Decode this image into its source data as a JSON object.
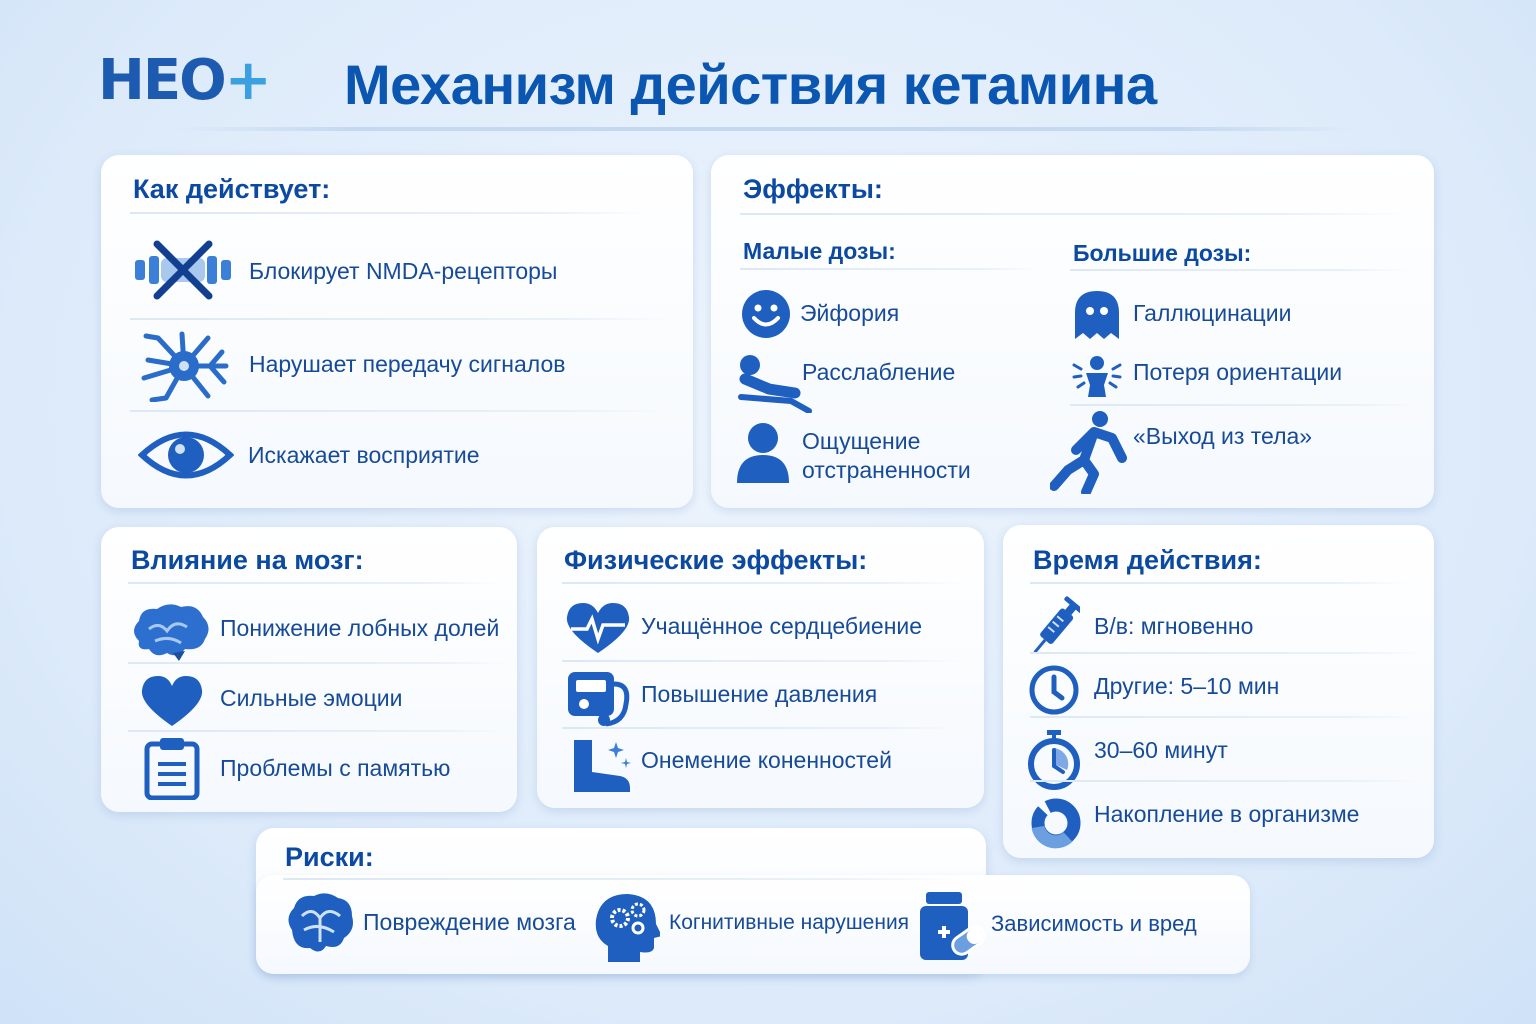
{
  "logo": "НЕО+",
  "title": "Механизм действия кетамина",
  "how": {
    "heading": "Как действует:",
    "items": [
      {
        "icon": "blocked-receptor-icon",
        "label": "Блокирует NMDA-рецепторы"
      },
      {
        "icon": "neuron-icon",
        "label": "Нарушает передачу сигналов"
      },
      {
        "icon": "eye-icon",
        "label": "Искажает восприятие"
      }
    ]
  },
  "effects": {
    "heading": "Эффекты:",
    "low": {
      "heading": "Малые дозы:",
      "items": [
        {
          "icon": "smiley-icon",
          "label": "Эйфория"
        },
        {
          "icon": "reclining-person-icon",
          "label": "Расслабление"
        },
        {
          "icon": "person-icon",
          "label": "Ощущение отстраненности"
        }
      ]
    },
    "high": {
      "heading": "Большие дозы:",
      "items": [
        {
          "icon": "ghost-icon",
          "label": "Галлюцинации"
        },
        {
          "icon": "dizzy-person-icon",
          "label": "Потеря ориентации"
        },
        {
          "icon": "floating-person-icon",
          "label": "«Выход из тела»"
        }
      ]
    }
  },
  "brain": {
    "heading": "Влияние на мозг:",
    "items": [
      {
        "icon": "brain-icon",
        "label": "Понижение лобных долей"
      },
      {
        "icon": "heart-icon",
        "label": "Сильные эмоции"
      },
      {
        "icon": "clipboard-icon",
        "label": "Проблемы с памятью"
      }
    ]
  },
  "physical": {
    "heading": "Физические эффекты:",
    "items": [
      {
        "icon": "heartbeat-icon",
        "label": "Учащённое сердцебиение"
      },
      {
        "icon": "blood-pressure-icon",
        "label": "Повышение давления"
      },
      {
        "icon": "boot-icon",
        "label": "Онемение коненностей"
      }
    ]
  },
  "time": {
    "heading": "Время действия:",
    "items": [
      {
        "icon": "syringe-icon",
        "label": "В/в: мгновенно"
      },
      {
        "icon": "clock-icon",
        "label": "Другие: 5–10 мин"
      },
      {
        "icon": "stopwatch-icon",
        "label": "30–60 минут"
      },
      {
        "icon": "cycle-icon",
        "label": "Накопление в организме"
      }
    ]
  },
  "risks": {
    "heading": "Риски:",
    "items": [
      {
        "icon": "brain-icon",
        "label": "Повреждение мозга"
      },
      {
        "icon": "head-gears-icon",
        "label": "Когнитивные нарушения"
      },
      {
        "icon": "pill-bottle-icon",
        "label": "Зависимость и вред"
      }
    ]
  },
  "colors": {
    "accent": "#0a56b0",
    "icon": "#1f5fbf",
    "text": "#174b98"
  }
}
